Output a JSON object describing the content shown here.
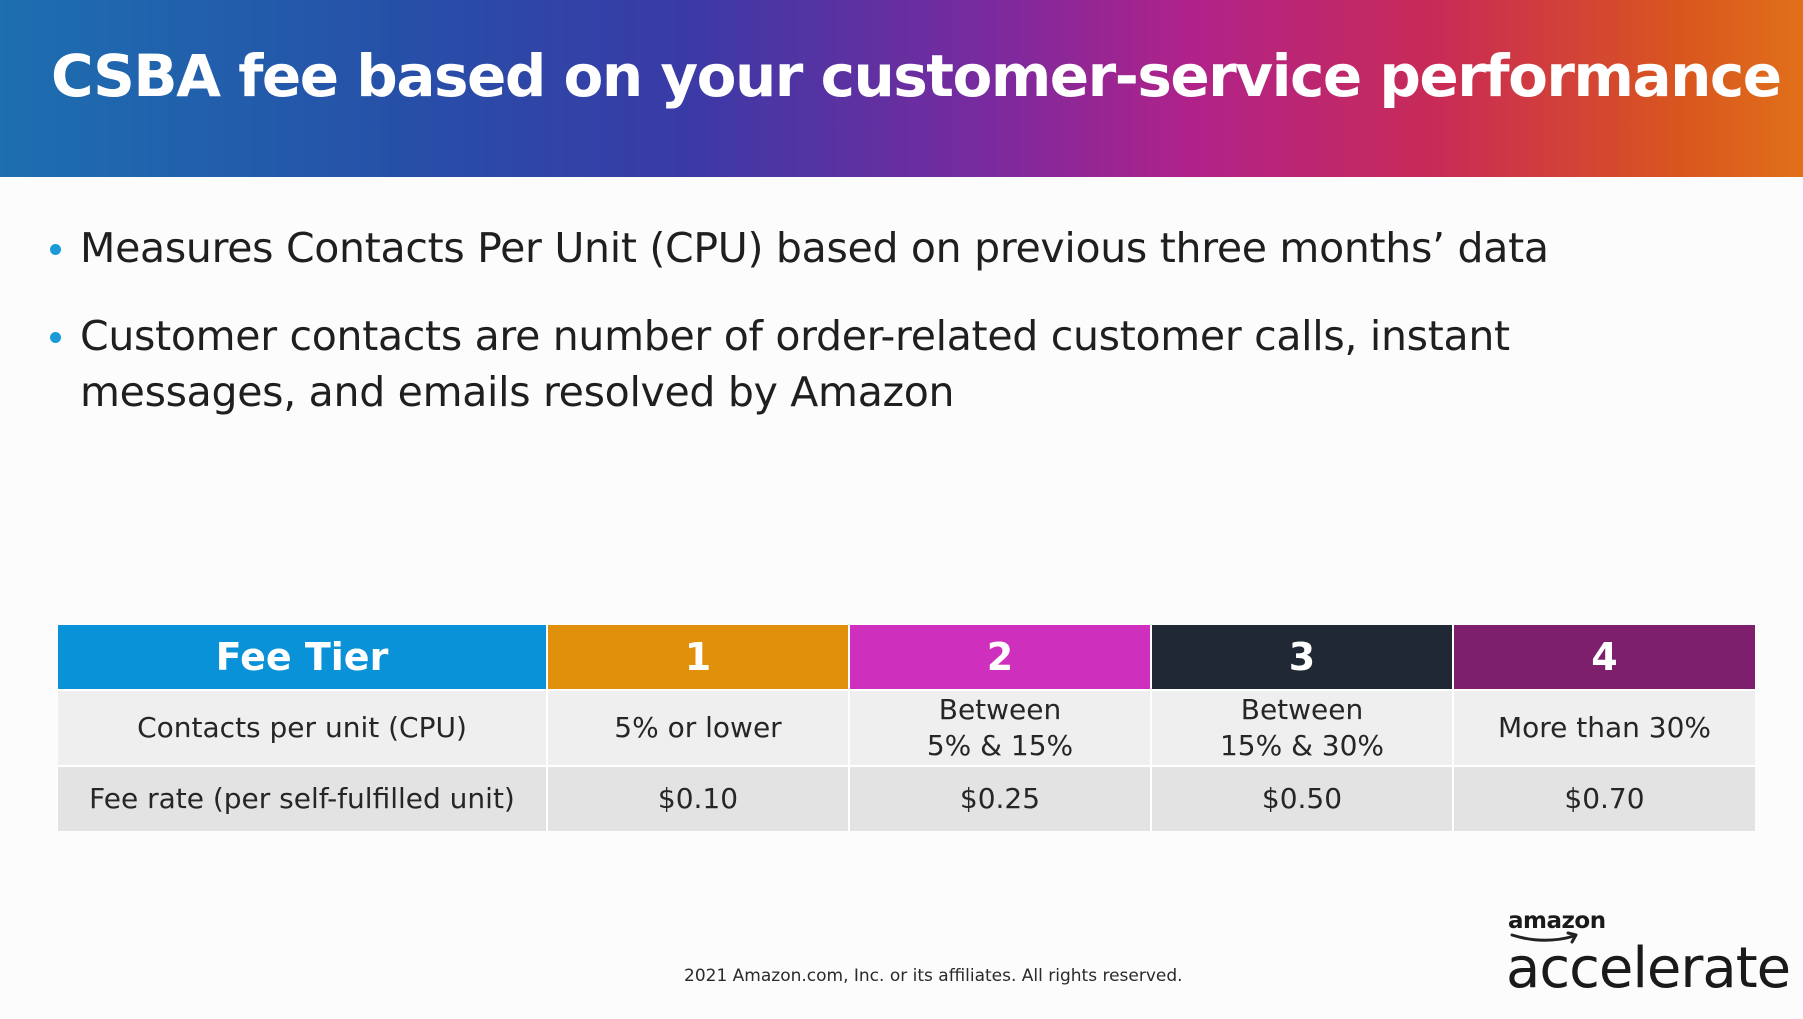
{
  "title": "CSBA fee based on your customer-service performance",
  "bullets": [
    "Measures Contacts Per Unit (CPU) based on previous three months’ data",
    "Customer contacts are number of order-related customer calls, instant messages, and emails resolved by Amazon"
  ],
  "table": {
    "headers": [
      {
        "label": "Fee Tier",
        "color": "#0a92d8"
      },
      {
        "label": "1",
        "color": "#e0900b"
      },
      {
        "label": "2",
        "color": "#cf2fbd"
      },
      {
        "label": "3",
        "color": "#1f2833"
      },
      {
        "label": "4",
        "color": "#7e1f6e"
      }
    ],
    "cpu_row": {
      "label": "Contacts per unit (CPU)",
      "values": [
        [
          "5% or lower"
        ],
        [
          "Between",
          "5% & 15%"
        ],
        [
          "Between",
          "15% & 30%"
        ],
        [
          "More than 30%"
        ]
      ]
    },
    "rate_row": {
      "label": "Fee rate (per self-fulfilled unit)",
      "values": [
        "$0.10",
        "$0.25",
        "$0.50",
        "$0.70"
      ]
    }
  },
  "footer": "2021 Amazon.com, Inc. or its affiliates. All rights reserved.",
  "logo": {
    "small": "amazon",
    "big": "accelerate"
  },
  "colors": {
    "bullet": "#1a9bd8",
    "smile": "#222222"
  }
}
